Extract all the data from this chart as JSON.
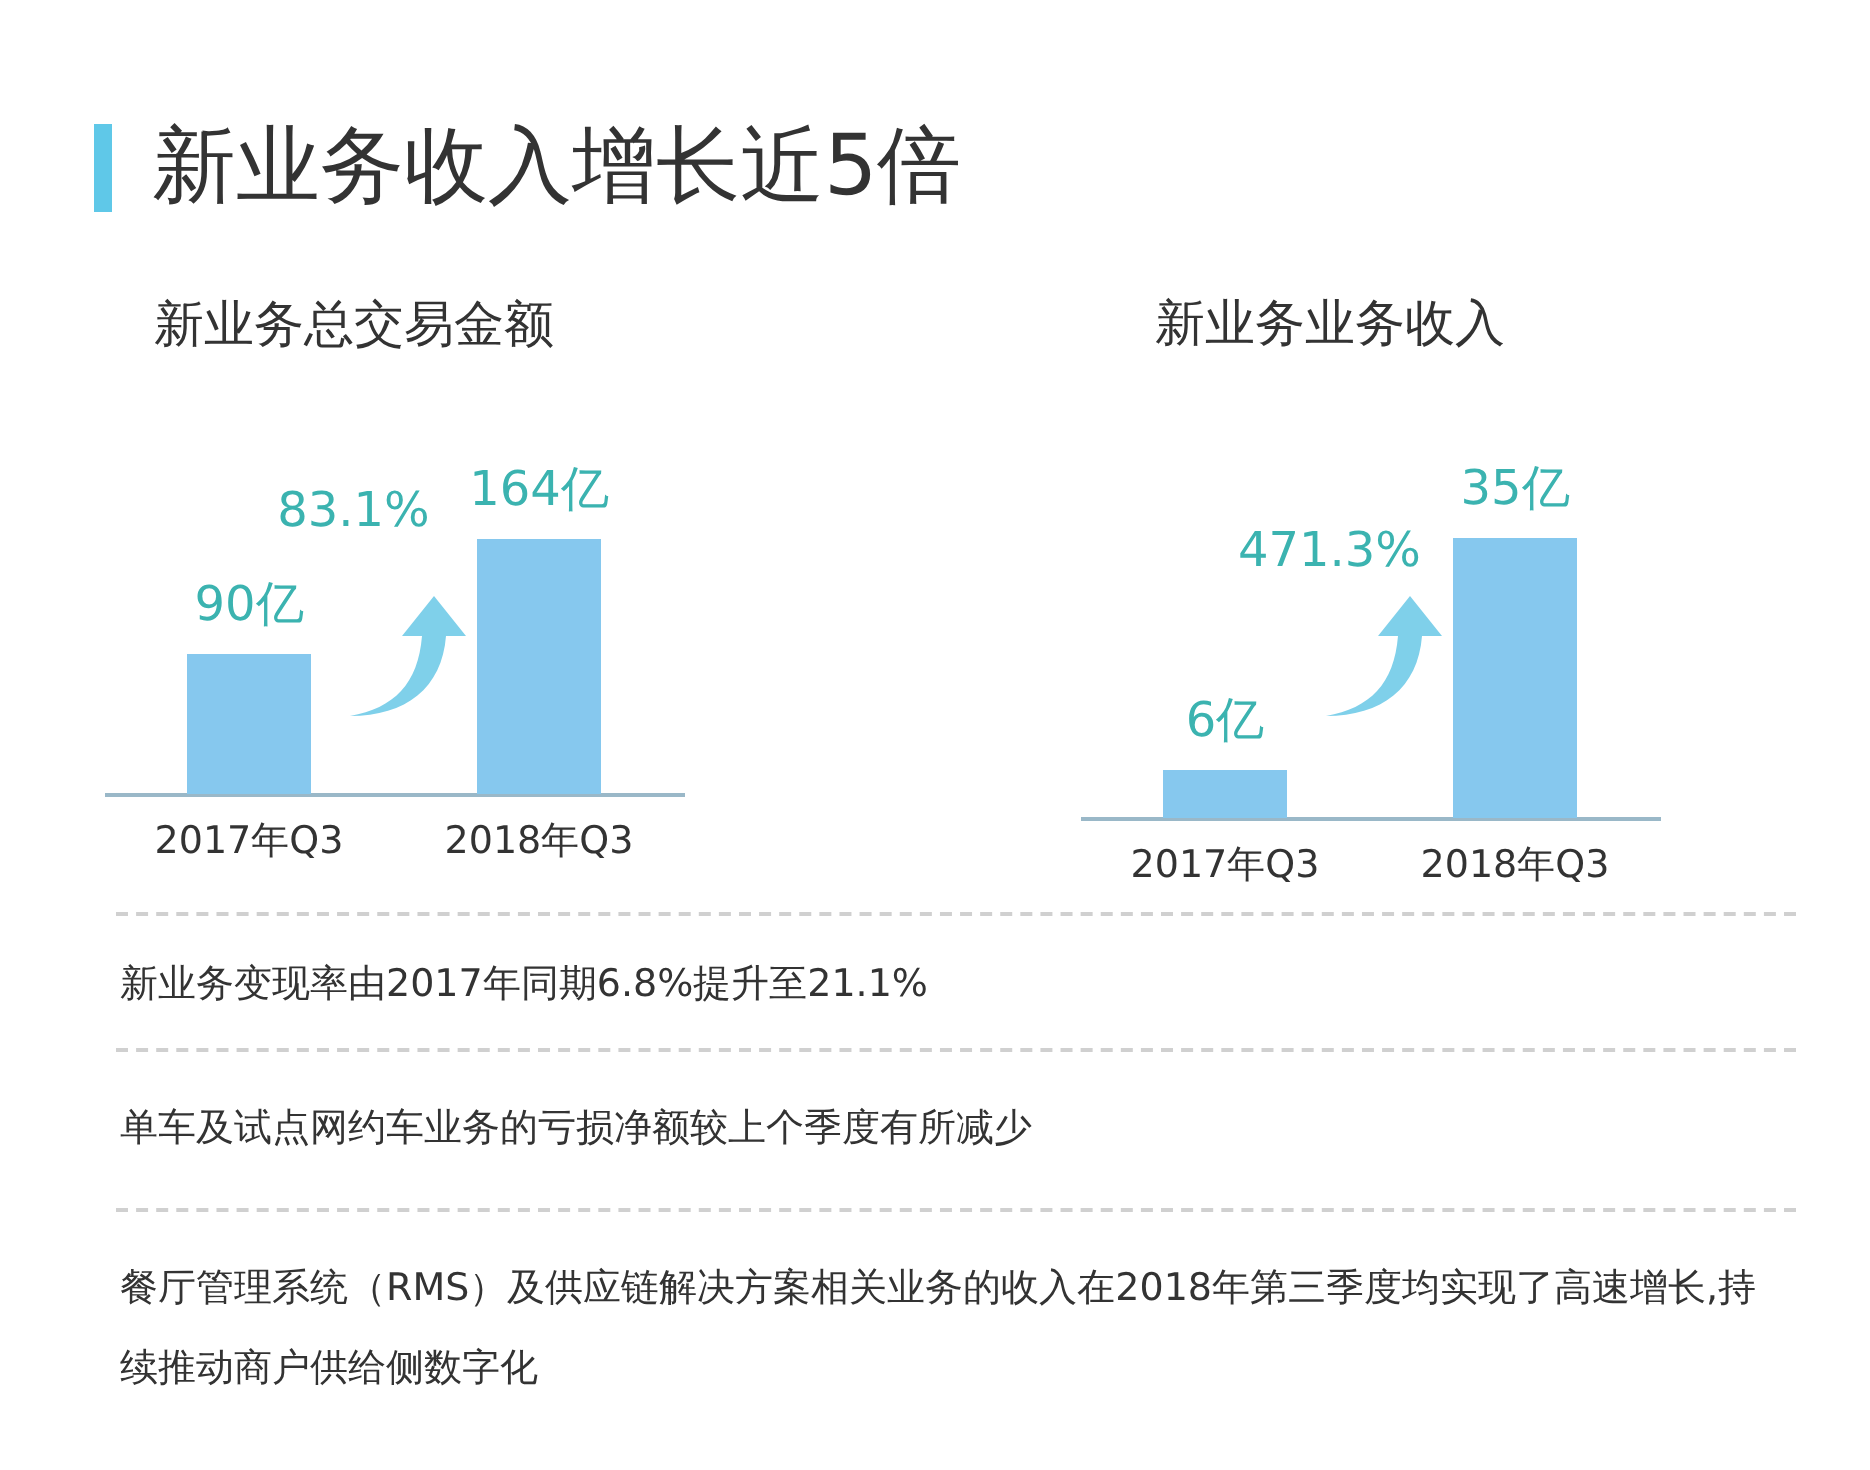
{
  "chart_data": [
    {
      "type": "bar",
      "title": "新业务总交易金额",
      "categories": [
        "2017年Q3",
        "2018年Q3"
      ],
      "values": [
        90,
        164
      ],
      "value_labels": [
        "90亿",
        "164亿"
      ],
      "color": "#86c8ee",
      "annotations": [
        "83.1%"
      ]
    },
    {
      "type": "bar",
      "title": "新业务业务收入",
      "categories": [
        "2017年Q3",
        "2018年Q3"
      ],
      "values": [
        6,
        35
      ],
      "value_labels": [
        "6亿",
        "35亿"
      ],
      "color": "#86c8ee",
      "annotations": [
        "471.3%"
      ]
    },
    {
      "type": "other",
      "title": "新业务收入增长近5倍",
      "annotations": [
        "新业务变现率由2017年同期6.8%提升至21.1%",
        "单车及试点网约车业务的亏损净额较上个季度有所减少",
        "餐厅管理系统（RMS）及供应链解决方案相关业务的收入在2018年第三季度均实现了高速增长,持续推动商户供给侧数字化"
      ]
    }
  ]
}
